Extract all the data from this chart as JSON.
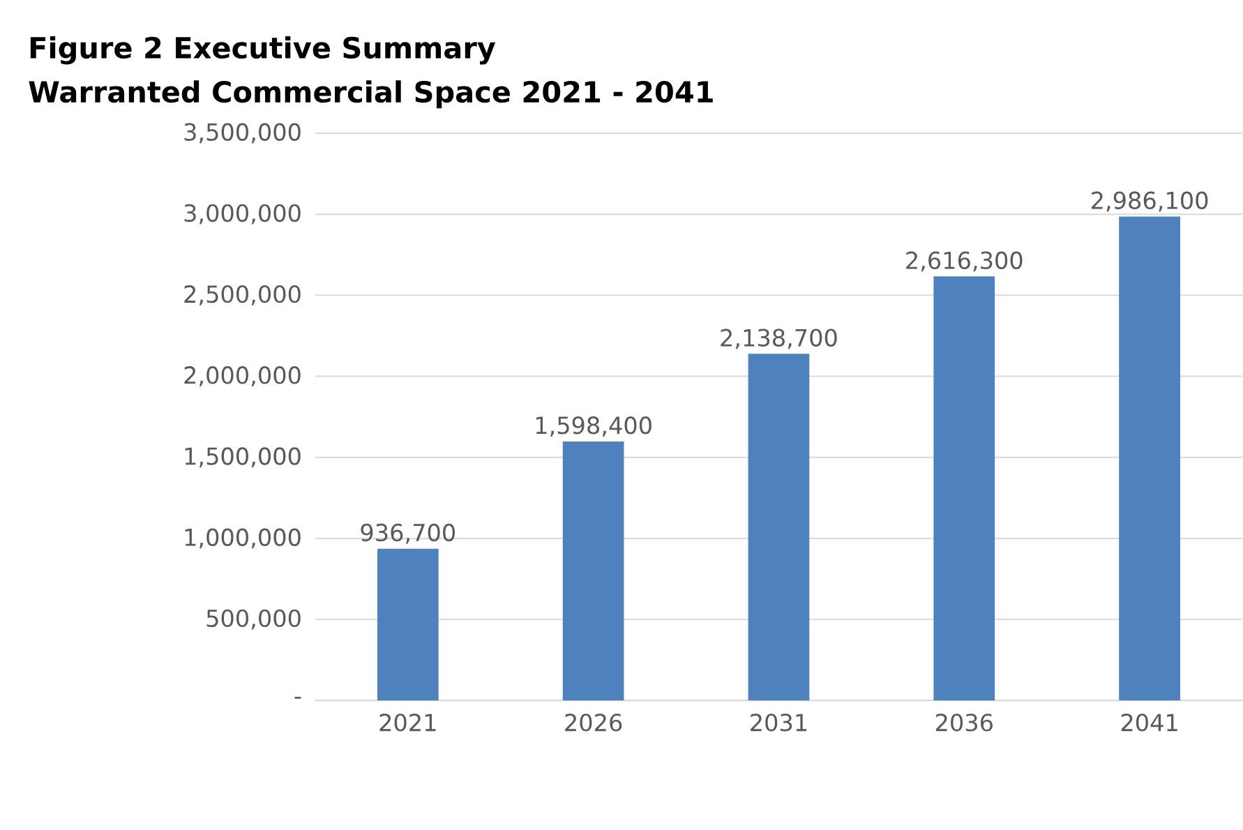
{
  "chart_data": {
    "type": "bar",
    "title": "Figure 2 Executive Summary\nWarranted Commercial Space 2021 - 2041",
    "categories": [
      "2021",
      "2026",
      "2031",
      "2036",
      "2041"
    ],
    "values": [
      936700,
      1598400,
      2138700,
      2616300,
      2986100
    ],
    "value_labels": [
      "936,700",
      "1,598,400",
      "2,138,700",
      "2,616,300",
      "2,986,100"
    ],
    "color": "#4f81bd",
    "ylim": [
      0,
      3500000
    ],
    "yticks": [
      {
        "value": 0,
        "label": "-"
      },
      {
        "value": 500000,
        "label": "500,000"
      },
      {
        "value": 1000000,
        "label": "1,000,000"
      },
      {
        "value": 1500000,
        "label": "1,500,000"
      },
      {
        "value": 2000000,
        "label": "2,000,000"
      },
      {
        "value": 2500000,
        "label": "2,500,000"
      },
      {
        "value": 3000000,
        "label": "3,000,000"
      },
      {
        "value": 3500000,
        "label": "3,500,000"
      }
    ],
    "grid": "y"
  }
}
